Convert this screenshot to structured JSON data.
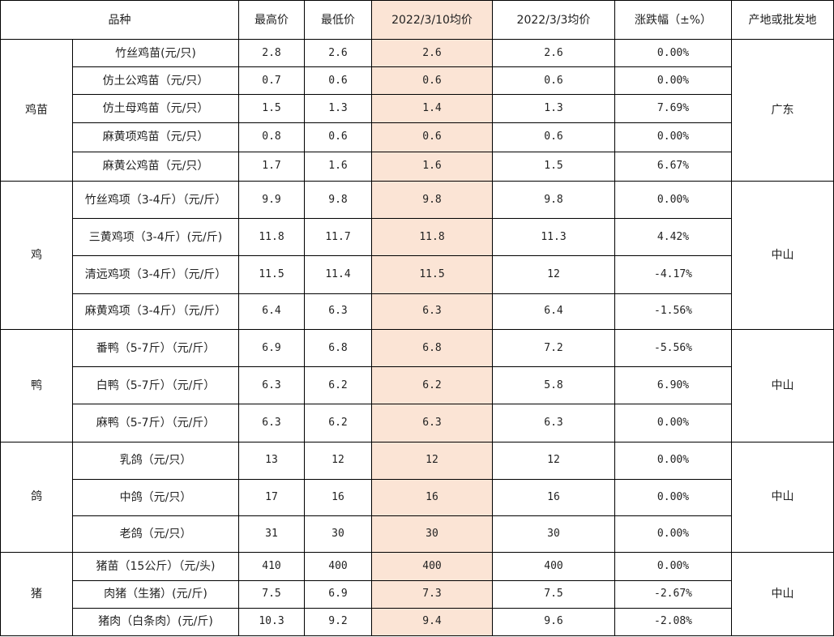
{
  "headers": {
    "variety": "品种",
    "high": "最高价",
    "low": "最低价",
    "avg_current": "2022/3/10均价",
    "avg_prev": "2022/3/3均价",
    "change": "涨跌幅（±%）",
    "origin": "产地或批发地"
  },
  "groups": [
    {
      "category": "鸡苗",
      "origin": "广东",
      "rows": [
        {
          "name": "竹丝鸡苗(元/只)",
          "high": "2.8",
          "low": "2.6",
          "avg_current": "2.6",
          "avg_prev": "2.6",
          "change": "0.00%"
        },
        {
          "name": "仿土公鸡苗（元/只）",
          "high": "0.7",
          "low": "0.6",
          "avg_current": "0.6",
          "avg_prev": "0.6",
          "change": "0.00%"
        },
        {
          "name": "仿土母鸡苗（元/只）",
          "high": "1.5",
          "low": "1.3",
          "avg_current": "1.4",
          "avg_prev": "1.3",
          "change": "7.69%"
        },
        {
          "name": "麻黄项鸡苗（元/只）",
          "high": "0.8",
          "low": "0.6",
          "avg_current": "0.6",
          "avg_prev": "0.6",
          "change": "0.00%"
        },
        {
          "name": "麻黄公鸡苗（元/只）",
          "high": "1.7",
          "low": "1.6",
          "avg_current": "1.6",
          "avg_prev": "1.5",
          "change": "6.67%"
        }
      ]
    },
    {
      "category": "鸡",
      "origin": "中山",
      "rows": [
        {
          "name": "竹丝鸡项（3-4斤）（元/斤）",
          "high": "9.9",
          "low": "9.8",
          "avg_current": "9.8",
          "avg_prev": "9.8",
          "change": "0.00%"
        },
        {
          "name": "三黄鸡项（3-4斤）(元/斤)",
          "high": "11.8",
          "low": "11.7",
          "avg_current": "11.8",
          "avg_prev": "11.3",
          "change": "4.42%"
        },
        {
          "name": "清远鸡项（3-4斤）（元/斤）",
          "high": "11.5",
          "low": "11.4",
          "avg_current": "11.5",
          "avg_prev": "12",
          "change": "-4.17%"
        },
        {
          "name": "麻黄鸡项（3-4斤）（元/斤）",
          "high": "6.4",
          "low": "6.3",
          "avg_current": "6.3",
          "avg_prev": "6.4",
          "change": "-1.56%"
        }
      ]
    },
    {
      "category": "鸭",
      "origin": "中山",
      "rows": [
        {
          "name": "番鸭（5-7斤）（元/斤）",
          "high": "6.9",
          "low": "6.8",
          "avg_current": "6.8",
          "avg_prev": "7.2",
          "change": "-5.56%"
        },
        {
          "name": "白鸭（5-7斤）（元/斤）",
          "high": "6.3",
          "low": "6.2",
          "avg_current": "6.2",
          "avg_prev": "5.8",
          "change": "6.90%"
        },
        {
          "name": "麻鸭（5-7斤）（元/斤）",
          "high": "6.3",
          "low": "6.2",
          "avg_current": "6.3",
          "avg_prev": "6.3",
          "change": "0.00%"
        }
      ]
    },
    {
      "category": "鸽",
      "origin": "中山",
      "rows": [
        {
          "name": "乳鸽（元/只）",
          "high": "13",
          "low": "12",
          "avg_current": "12",
          "avg_prev": "12",
          "change": "0.00%"
        },
        {
          "name": "中鸽（元/只）",
          "high": "17",
          "low": "16",
          "avg_current": "16",
          "avg_prev": "16",
          "change": "0.00%"
        },
        {
          "name": "老鸽（元/只）",
          "high": "31",
          "low": "30",
          "avg_current": "30",
          "avg_prev": "30",
          "change": "0.00%"
        }
      ]
    },
    {
      "category": "猪",
      "origin": "中山",
      "rows": [
        {
          "name": "猪苗（15公斤）（元/头)",
          "high": "410",
          "low": "400",
          "avg_current": "400",
          "avg_prev": "400",
          "change": "0.00%"
        },
        {
          "name": "肉猪（生猪）(元/斤)",
          "high": "7.5",
          "low": "6.9",
          "avg_current": "7.3",
          "avg_prev": "7.5",
          "change": "-2.67%"
        },
        {
          "name": "猪肉（白条肉）(元/斤)",
          "high": "10.3",
          "low": "9.2",
          "avg_current": "9.4",
          "avg_prev": "9.6",
          "change": "-2.08%"
        }
      ]
    }
  ],
  "colors": {
    "highlight_column": "#fbe4d5",
    "border": "#000000",
    "background": "#ffffff"
  }
}
